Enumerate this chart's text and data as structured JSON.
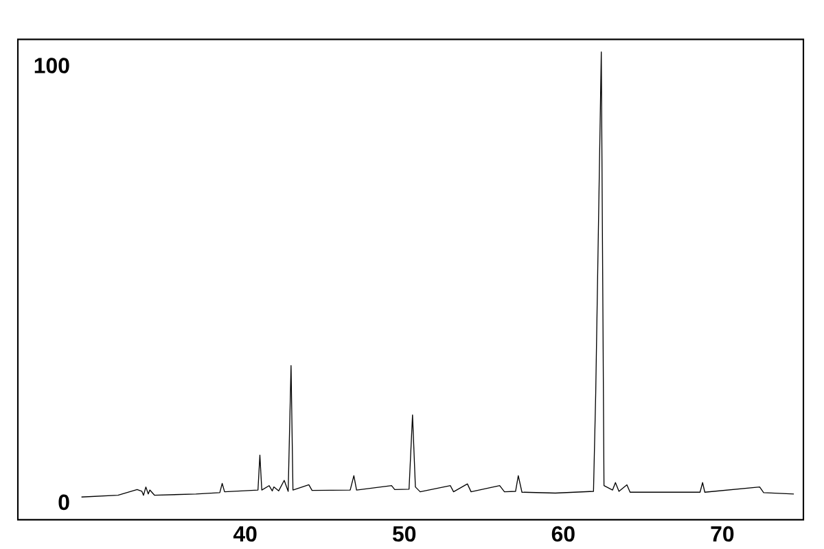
{
  "chart_data": {
    "type": "line",
    "color": "#000000",
    "line_style": "solid",
    "marker": "none",
    "grid": false,
    "x": [
      29.7,
      32.0,
      33.2,
      33.5,
      33.6,
      33.75,
      33.9,
      34.0,
      34.3,
      36.9,
      38.4,
      38.55,
      38.7,
      40.8,
      40.92,
      41.04,
      41.5,
      41.7,
      41.8,
      42.1,
      42.45,
      42.7,
      42.88,
      43.0,
      44.0,
      44.2,
      46.6,
      46.83,
      47.0,
      49.2,
      49.4,
      50.3,
      50.52,
      50.7,
      51.0,
      52.9,
      53.1,
      53.97,
      54.2,
      56.0,
      56.3,
      57.0,
      57.17,
      57.4,
      59.5,
      61.9,
      62.04,
      62.39,
      62.56,
      63.1,
      63.28,
      63.5,
      64.0,
      64.2,
      68.6,
      68.76,
      68.9,
      72.35,
      72.6,
      74.5
    ],
    "values": [
      1.2,
      1.6,
      2.9,
      2.5,
      1.6,
      3.5,
      1.9,
      2.8,
      1.6,
      1.9,
      2.2,
      4.3,
      2.4,
      2.8,
      10.8,
      2.8,
      3.8,
      2.6,
      3.5,
      2.6,
      5.0,
      2.5,
      31.3,
      2.8,
      4.0,
      2.7,
      2.8,
      6.1,
      2.8,
      3.8,
      2.9,
      3.0,
      20.0,
      3.5,
      2.4,
      3.8,
      2.4,
      4.2,
      2.4,
      3.8,
      2.4,
      2.5,
      6.1,
      2.3,
      2.1,
      2.5,
      25.0,
      103.1,
      3.8,
      2.8,
      4.5,
      2.5,
      4.0,
      2.3,
      2.3,
      4.5,
      2.3,
      3.5,
      2.2,
      1.9
    ],
    "xlim": [
      25.7,
      75.1
    ],
    "ylim": [
      -4,
      106
    ],
    "xticks": [
      40,
      50,
      60,
      70
    ],
    "yticks": [
      0,
      100
    ]
  }
}
